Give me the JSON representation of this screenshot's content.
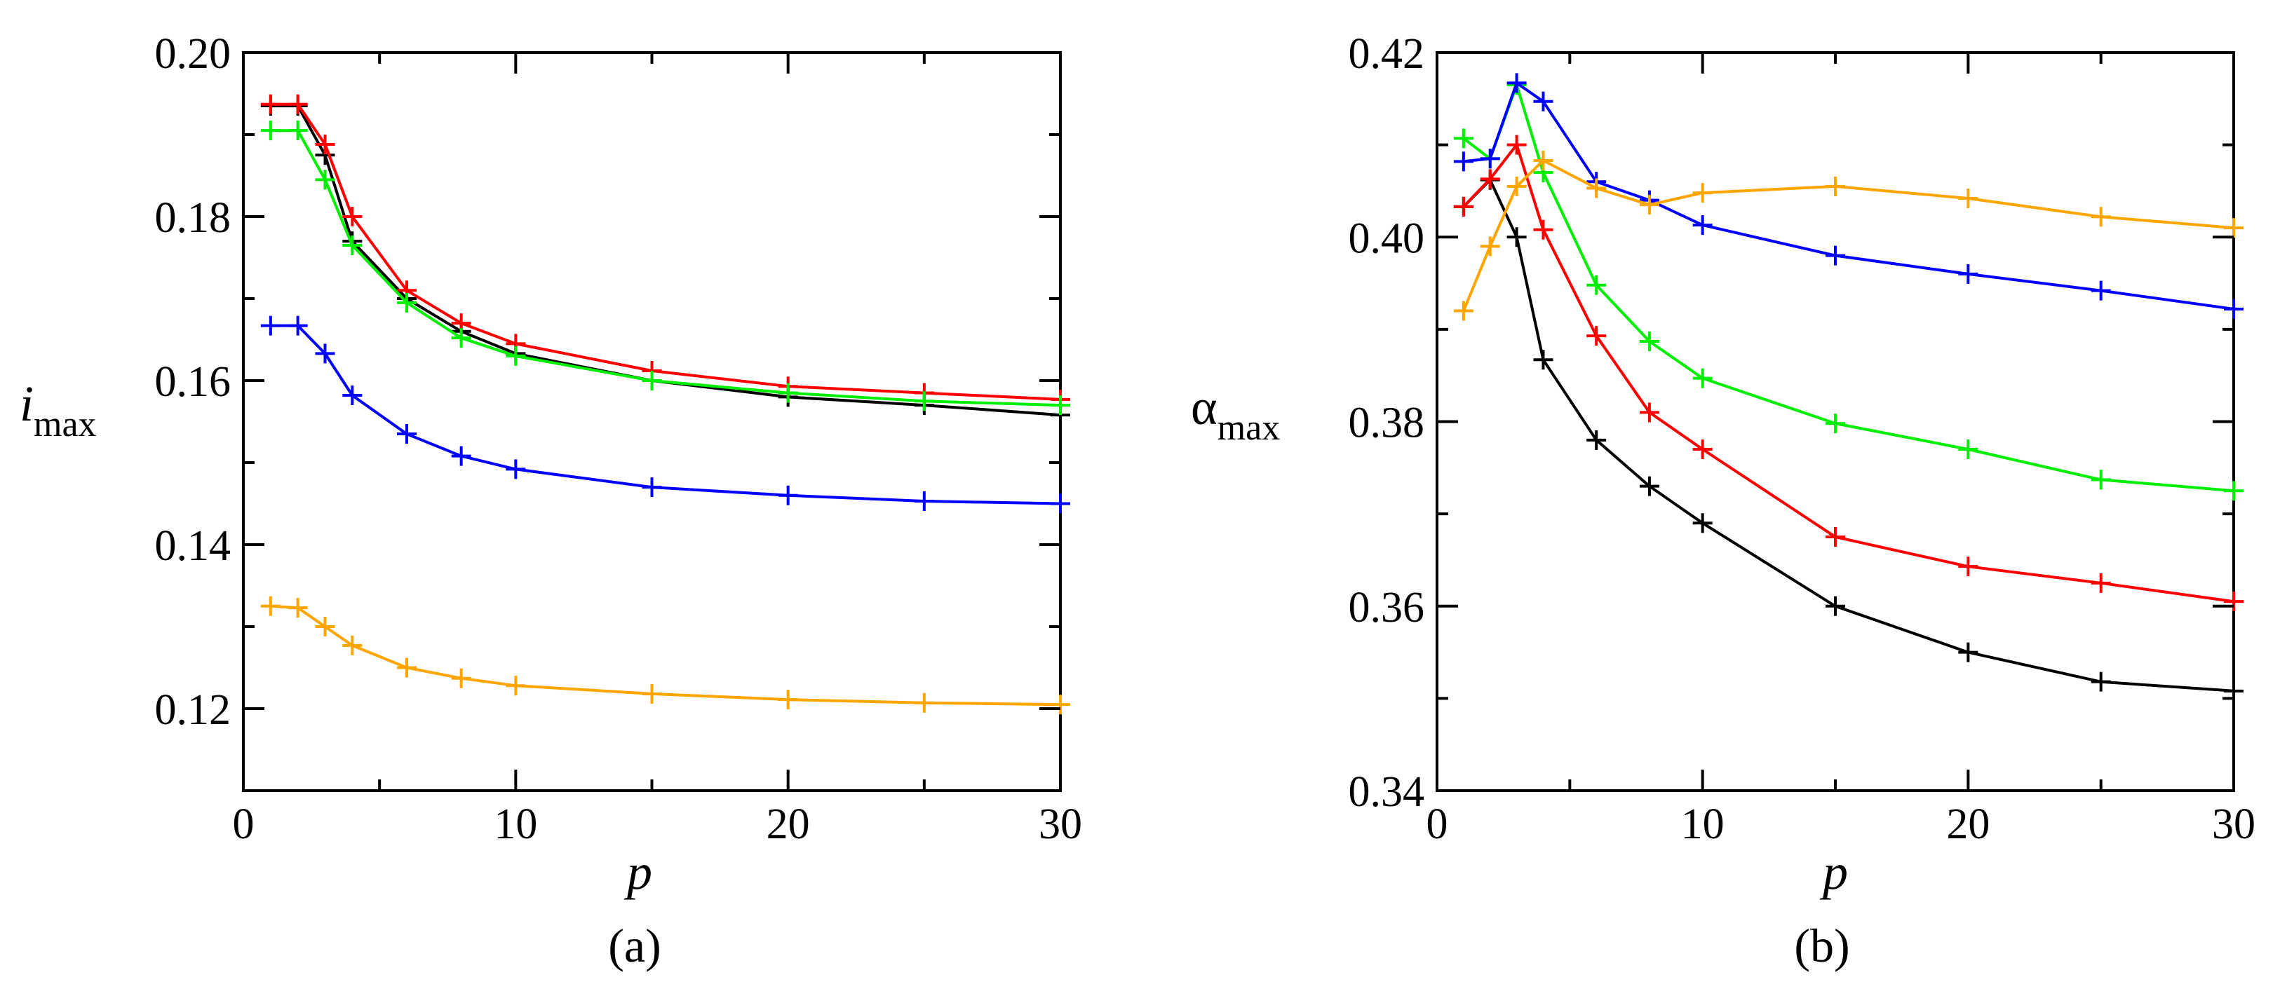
{
  "figure": {
    "caption_a": "(a)",
    "caption_b": "(b)"
  },
  "chart_data": [
    {
      "type": "line",
      "panel": "a",
      "title": "",
      "xlabel": "p",
      "ylabel": {
        "base": "i",
        "subscript": "max"
      },
      "xlim": [
        0,
        30
      ],
      "ylim": [
        0.11,
        0.2
      ],
      "xticks": [
        0,
        10,
        20,
        30
      ],
      "xtick_labels": [
        "0",
        "10",
        "20",
        "30"
      ],
      "yticks": [
        0.12,
        0.14,
        0.16,
        0.18,
        0.2
      ],
      "ytick_labels": [
        "0.12",
        "0.14",
        "0.16",
        "0.18",
        "0.20"
      ],
      "grid": false,
      "marker": "plus",
      "x": [
        1,
        2,
        3,
        4,
        6,
        8,
        10,
        15,
        20,
        25,
        30
      ],
      "series": [
        {
          "name": "black",
          "color": "#000000",
          "values": [
            0.1935,
            0.1935,
            0.1875,
            0.177,
            0.17,
            0.166,
            0.1633,
            0.16,
            0.158,
            0.157,
            0.1558
          ]
        },
        {
          "name": "red",
          "color": "#ff0000",
          "values": [
            0.1937,
            0.1937,
            0.1888,
            0.18,
            0.171,
            0.167,
            0.1645,
            0.1612,
            0.1593,
            0.1585,
            0.1577
          ]
        },
        {
          "name": "green",
          "color": "#00ee00",
          "values": [
            0.1905,
            0.1905,
            0.1845,
            0.1765,
            0.1695,
            0.1652,
            0.163,
            0.16,
            0.1585,
            0.1575,
            0.157
          ]
        },
        {
          "name": "blue",
          "color": "#0000ff",
          "values": [
            0.1667,
            0.1667,
            0.1633,
            0.1582,
            0.1535,
            0.1508,
            0.1492,
            0.147,
            0.146,
            0.1453,
            0.145
          ]
        },
        {
          "name": "orange",
          "color": "#ffa500",
          "values": [
            0.1325,
            0.1323,
            0.13,
            0.1277,
            0.125,
            0.1237,
            0.1228,
            0.1218,
            0.1211,
            0.1207,
            0.1205
          ]
        }
      ]
    },
    {
      "type": "line",
      "panel": "b",
      "title": "",
      "xlabel": "p",
      "ylabel": {
        "base": "α",
        "subscript": "max"
      },
      "xlim": [
        0,
        30
      ],
      "ylim": [
        0.34,
        0.42
      ],
      "xticks": [
        0,
        10,
        20,
        30
      ],
      "xtick_labels": [
        "0",
        "10",
        "20",
        "30"
      ],
      "yticks": [
        0.34,
        0.36,
        0.38,
        0.4,
        0.42
      ],
      "ytick_labels": [
        "0.34",
        "0.36",
        "0.38",
        "0.40",
        "0.42"
      ],
      "grid": false,
      "marker": "plus",
      "x": [
        1,
        2,
        3,
        4,
        6,
        8,
        10,
        15,
        20,
        25,
        30
      ],
      "series": [
        {
          "name": "black",
          "color": "#000000",
          "values": [
            0.4033,
            0.4062,
            0.4,
            0.3867,
            0.378,
            0.373,
            0.369,
            0.36,
            0.355,
            0.3518,
            0.3508
          ]
        },
        {
          "name": "red",
          "color": "#ff0000",
          "values": [
            0.4033,
            0.4063,
            0.41,
            0.4008,
            0.3893,
            0.381,
            0.377,
            0.3675,
            0.3643,
            0.3625,
            0.3605
          ]
        },
        {
          "name": "green",
          "color": "#00ee00",
          "values": [
            0.4107,
            0.4085,
            0.4165,
            0.407,
            0.3948,
            0.3887,
            0.3847,
            0.3798,
            0.377,
            0.3737,
            0.3725
          ]
        },
        {
          "name": "blue",
          "color": "#0000ff",
          "values": [
            0.4082,
            0.4085,
            0.4167,
            0.4147,
            0.406,
            0.404,
            0.4013,
            0.398,
            0.396,
            0.3942,
            0.3922
          ]
        },
        {
          "name": "orange",
          "color": "#ffa500",
          "values": [
            0.392,
            0.399,
            0.4055,
            0.4083,
            0.4053,
            0.4035,
            0.4048,
            0.4055,
            0.4042,
            0.4022,
            0.401
          ]
        }
      ]
    }
  ]
}
